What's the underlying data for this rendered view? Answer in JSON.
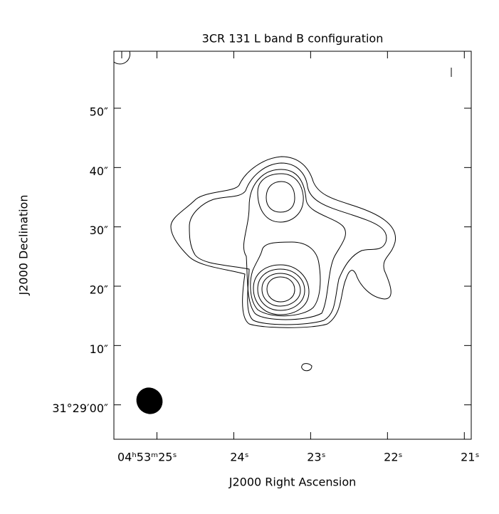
{
  "chart_data": {
    "type": "contour",
    "title": "3CR 131 L band B configuration",
    "x_label": "J2000 Right Ascension",
    "y_label": "J2000 Declination",
    "xlim": [
      25.56,
      20.91
    ],
    "ylim": [
      -5.8,
      59.6
    ],
    "xticks": [
      {
        "value": 25,
        "label": "04ʰ53ᵐ25ˢ"
      },
      {
        "value": 24,
        "label": "24ˢ"
      },
      {
        "value": 23,
        "label": "23ˢ"
      },
      {
        "value": 22,
        "label": "22ˢ"
      },
      {
        "value": 21,
        "label": "21ˢ"
      }
    ],
    "yticks": [
      {
        "value": 0,
        "label": "31°29′00″"
      },
      {
        "value": 10,
        "label": "10″"
      },
      {
        "value": 20,
        "label": "20″"
      },
      {
        "value": 30,
        "label": "30″"
      },
      {
        "value": 40,
        "label": "40″"
      },
      {
        "value": 50,
        "label": "50″"
      }
    ],
    "color": "#000000"
  }
}
